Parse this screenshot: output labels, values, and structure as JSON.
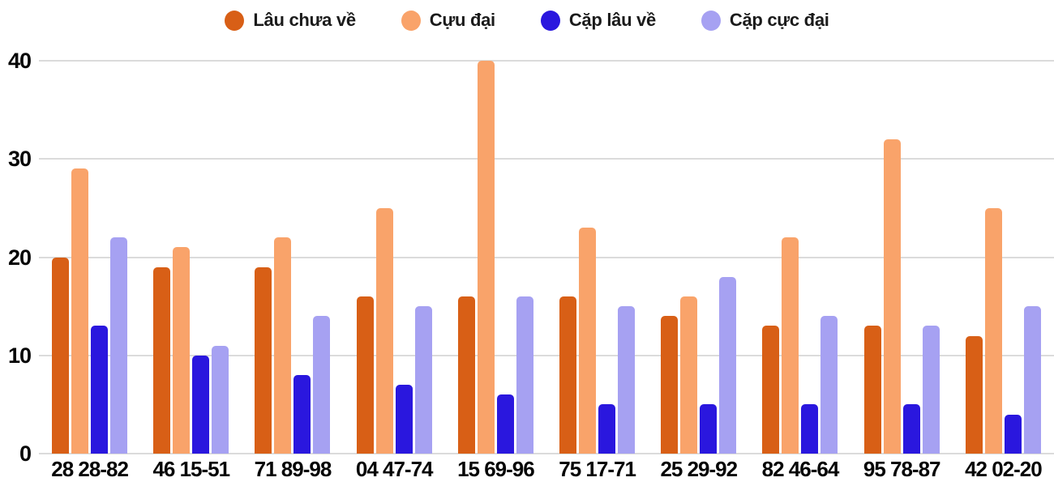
{
  "chart_data": {
    "type": "bar",
    "title": "",
    "xlabel": "",
    "ylabel": "",
    "ylim": [
      0,
      40
    ],
    "yticks": [
      0,
      10,
      20,
      30,
      40
    ],
    "grid": true,
    "legend_position": "top-center",
    "categories": [
      "28 28-82",
      "46 15-51",
      "71 89-98",
      "04 47-74",
      "15 69-96",
      "75 17-71",
      "25 29-92",
      "82 46-64",
      "95 78-87",
      "42 02-20"
    ],
    "series": [
      {
        "name": "Lâu chưa về",
        "color": "#d85f16",
        "values": [
          20,
          19,
          19,
          16,
          16,
          16,
          14,
          13,
          13,
          12
        ]
      },
      {
        "name": "Cựu đại",
        "color": "#f9a36a",
        "values": [
          29,
          21,
          22,
          25,
          40,
          23,
          16,
          22,
          32,
          25
        ]
      },
      {
        "name": "Cặp lâu về",
        "color": "#2a17de",
        "values": [
          13,
          10,
          8,
          7,
          6,
          5,
          5,
          5,
          5,
          4
        ]
      },
      {
        "name": "Cặp cực đại",
        "color": "#a6a1f2",
        "values": [
          22,
          11,
          14,
          15,
          16,
          15,
          18,
          14,
          13,
          15
        ]
      }
    ]
  },
  "colors": {
    "background": "#ffffff",
    "gridline": "#dbdbdb",
    "axis_text": "#050505",
    "legend_text": "#1b1b1b"
  }
}
